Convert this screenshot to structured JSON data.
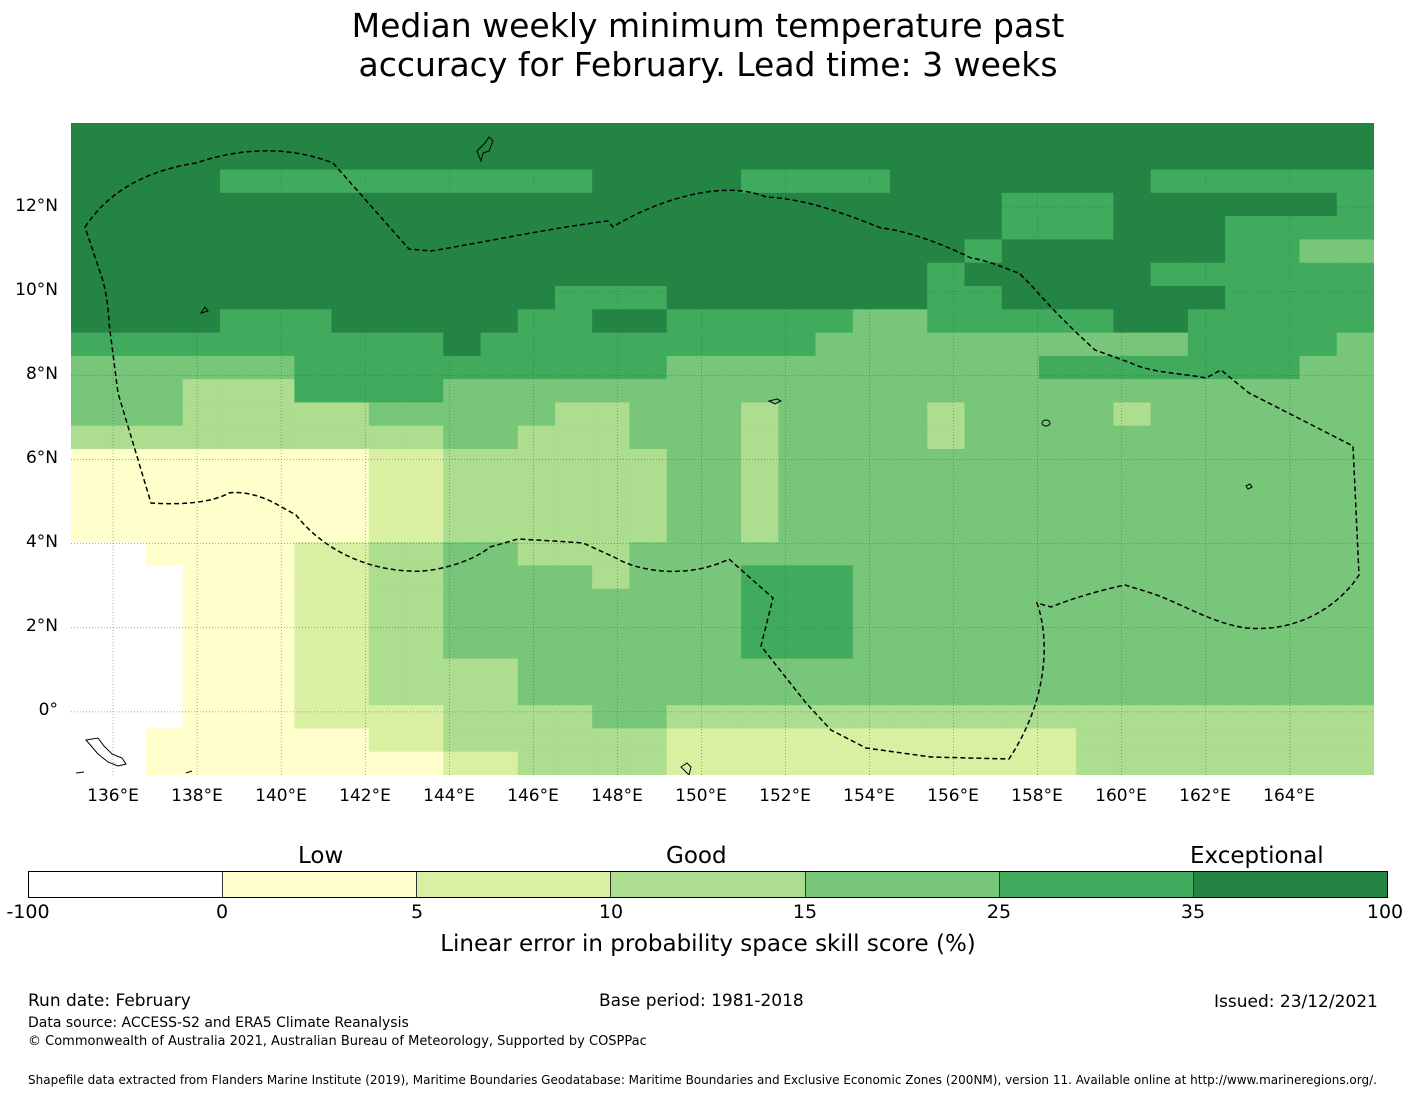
{
  "title": {
    "line1": "Median weekly minimum temperature past",
    "line2": "accuracy for February. Lead time: 3 weeks"
  },
  "map": {
    "lat_ticks": [
      "12°N",
      "10°N",
      "8°N",
      "6°N",
      "4°N",
      "2°N",
      "0°"
    ],
    "lon_ticks": [
      "136°E",
      "138°E",
      "140°E",
      "142°E",
      "144°E",
      "146°E",
      "148°E",
      "150°E",
      "152°E",
      "154°E",
      "156°E",
      "158°E",
      "160°E",
      "162°E",
      "164°E"
    ],
    "lon_range": [
      135.0,
      166.0
    ],
    "lat_range": [
      -1.5,
      14.0
    ],
    "boundary_style": "dashed black line (Federated States of Micronesia EEZ)",
    "skill_grid_rows_north_to_south": [
      "66666666666666666666666666666666666",
      "66666666666666666666666666666666666",
      "66665555555555666655556666666555555",
      "66666666666666666666666665556666665",
      "66666666666666666666666665556665555",
      "66666666666666666666666656666665544",
      "66666666666666666666666566666555555",
      "66666666666665556666666556666665555",
      "66665556666655665555544555556655555",
      "55555555556555555555444444444455554",
      "44444455555555554444444444555555544",
      "44433355554444444444444444444444444",
      "44433333444443344434444344443444444",
      "33333333334433344434444344444444444",
      "11111111223333334434444444444444444",
      "11111111223333334434444444444444444",
      "11111111223333334434444444444444444",
      "11111111223333334434444444444444444",
      "00111122334433344444444444444444444",
      "00011122334444344455544444444444444",
      "00011122334444444455544444444444444",
      "00011122334444444455544444444444444",
      "00011122334444444455544444444444444",
      "00011122333344444444444444444444444",
      "00011122333344444444444444444444444",
      "00011122223333443333333333333333333",
      "00111111223333332222222222233333333",
      "00111111112233332222222222233333333"
    ]
  },
  "legend": {
    "categories": [
      "Low",
      "Good",
      "Exceptional"
    ],
    "ticks": [
      "-100",
      "0",
      "5",
      "10",
      "15",
      "25",
      "35",
      "100"
    ],
    "colors": [
      "#ffffff",
      "#ffffcc",
      "#d9f0a3",
      "#addd8e",
      "#78c679",
      "#41ab5d",
      "#238443"
    ],
    "label": "Linear error in probability space skill score (%)"
  },
  "footer": {
    "run_date": "Run date: February",
    "base_period": "Base period: 1981-2018",
    "issued": "Issued: 23/12/2021",
    "data_source": "Data source: ACCESS-S2 and ERA5 Climate Reanalysis",
    "copyright": "© Commonwealth of Australia 2021, Australian Bureau of Meteorology, Supported by COSPPac",
    "shapefile": "Shapefile data extracted from Flanders Marine Institute (2019), Maritime Boundaries Geodatabase: Maritime Boundaries and Exclusive Economic Zones (200NM), version 11. Available online at http://www.marineregions.org/."
  }
}
